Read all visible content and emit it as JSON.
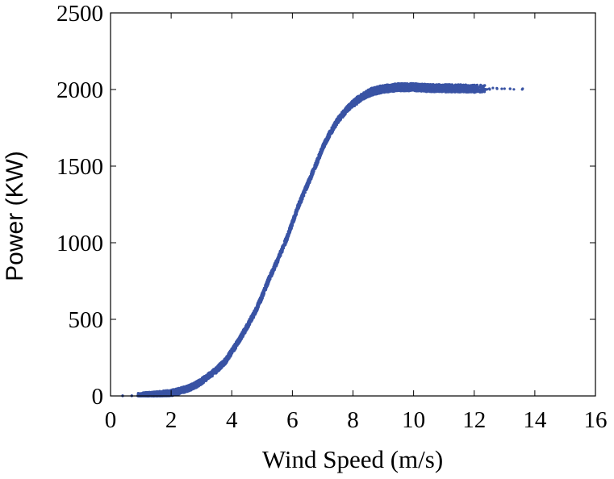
{
  "chart_data": {
    "type": "scatter",
    "title": "",
    "xlabel": "Wind Speed (m/s)",
    "ylabel": "Power (KW)",
    "xlim": [
      0,
      16
    ],
    "ylim": [
      0,
      2500
    ],
    "x_ticks": [
      0,
      2,
      4,
      6,
      8,
      10,
      12,
      14,
      16
    ],
    "y_ticks": [
      0,
      500,
      1000,
      1500,
      2000,
      2500
    ],
    "grid": false,
    "legend": "none",
    "series": [
      {
        "color": "#3953a4",
        "points": [
          [
            0.4,
            0
          ],
          [
            0.7,
            0
          ],
          [
            1.0,
            2
          ],
          [
            1.2,
            4
          ],
          [
            1.5,
            8
          ],
          [
            1.8,
            15
          ],
          [
            2.0,
            20
          ],
          [
            2.2,
            28
          ],
          [
            2.5,
            45
          ],
          [
            2.8,
            70
          ],
          [
            3.0,
            95
          ],
          [
            3.2,
            125
          ],
          [
            3.5,
            170
          ],
          [
            3.8,
            230
          ],
          [
            4.0,
            290
          ],
          [
            4.2,
            350
          ],
          [
            4.5,
            450
          ],
          [
            4.8,
            560
          ],
          [
            5.0,
            650
          ],
          [
            5.2,
            750
          ],
          [
            5.5,
            880
          ],
          [
            5.8,
            1020
          ],
          [
            6.0,
            1130
          ],
          [
            6.2,
            1240
          ],
          [
            6.5,
            1380
          ],
          [
            6.8,
            1520
          ],
          [
            7.0,
            1620
          ],
          [
            7.2,
            1700
          ],
          [
            7.5,
            1800
          ],
          [
            7.8,
            1870
          ],
          [
            8.0,
            1910
          ],
          [
            8.3,
            1950
          ],
          [
            8.6,
            1985
          ],
          [
            9.0,
            2005
          ],
          [
            9.5,
            2015
          ],
          [
            10.0,
            2015
          ],
          [
            10.5,
            2010
          ],
          [
            11.0,
            2008
          ],
          [
            11.5,
            2008
          ],
          [
            12.0,
            2005
          ],
          [
            12.5,
            2005
          ],
          [
            13.0,
            2005
          ],
          [
            13.6,
            2005
          ]
        ]
      }
    ]
  }
}
